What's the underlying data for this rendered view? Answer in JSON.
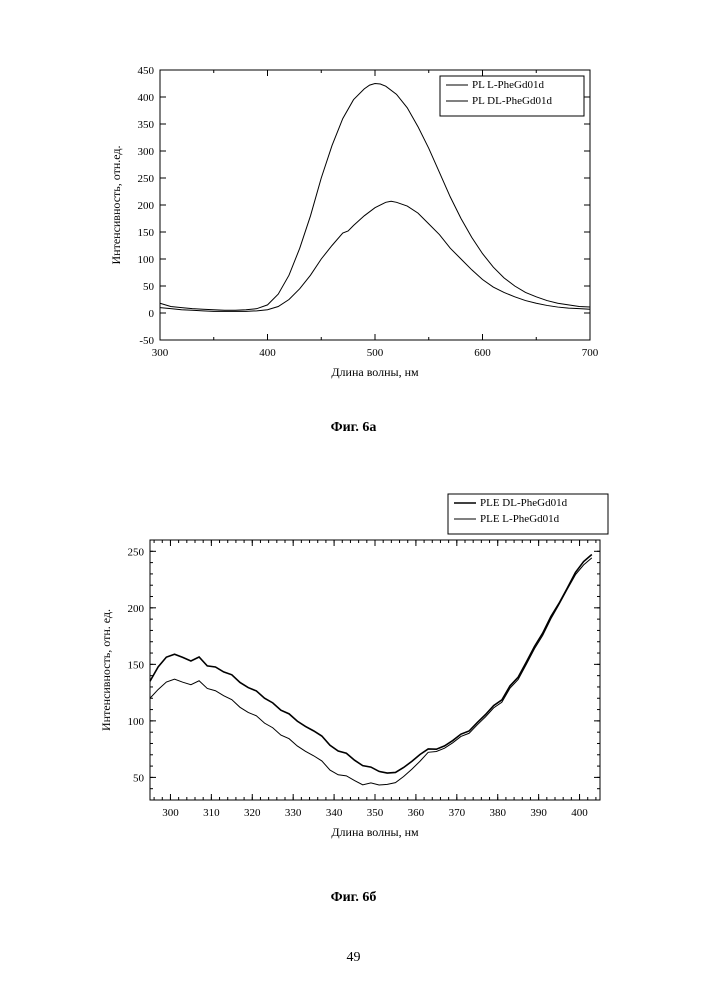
{
  "page_number": "49",
  "chart_a": {
    "type": "line",
    "caption": "Фиг. 6а",
    "xlabel": "Длина волны, нм",
    "ylabel": "Интенсивность, отн.ед.",
    "label_fontsize": 12,
    "tick_fontsize": 11,
    "background_color": "#ffffff",
    "axis_color": "#000000",
    "line_color": "#000000",
    "line_width": 1,
    "xlim": [
      300,
      700
    ],
    "ylim": [
      -50,
      450
    ],
    "xtick_step": 100,
    "ytick_step": 50,
    "minor_xtick_step": 50,
    "legend": {
      "position": "top-right",
      "items": [
        "PL L-PheGd01d",
        "PL DL-PheGd01d"
      ],
      "border_color": "#000000",
      "fontsize": 11
    },
    "series": [
      {
        "name": "PL L-PheGd01d",
        "color": "#000000",
        "data": [
          [
            300,
            18
          ],
          [
            310,
            12
          ],
          [
            320,
            10
          ],
          [
            330,
            8
          ],
          [
            340,
            7
          ],
          [
            350,
            6
          ],
          [
            360,
            5
          ],
          [
            370,
            5
          ],
          [
            380,
            6
          ],
          [
            390,
            8
          ],
          [
            400,
            15
          ],
          [
            410,
            35
          ],
          [
            420,
            70
          ],
          [
            430,
            120
          ],
          [
            440,
            180
          ],
          [
            450,
            250
          ],
          [
            460,
            310
          ],
          [
            470,
            360
          ],
          [
            480,
            395
          ],
          [
            490,
            415
          ],
          [
            495,
            422
          ],
          [
            500,
            425
          ],
          [
            505,
            424
          ],
          [
            510,
            420
          ],
          [
            520,
            405
          ],
          [
            530,
            380
          ],
          [
            540,
            345
          ],
          [
            550,
            305
          ],
          [
            560,
            260
          ],
          [
            570,
            215
          ],
          [
            580,
            175
          ],
          [
            590,
            140
          ],
          [
            600,
            110
          ],
          [
            610,
            85
          ],
          [
            620,
            65
          ],
          [
            630,
            50
          ],
          [
            640,
            38
          ],
          [
            650,
            30
          ],
          [
            660,
            23
          ],
          [
            670,
            18
          ],
          [
            680,
            15
          ],
          [
            690,
            12
          ],
          [
            700,
            11
          ]
        ]
      },
      {
        "name": "PL DL-PheGd01d",
        "color": "#000000",
        "data": [
          [
            300,
            10
          ],
          [
            310,
            8
          ],
          [
            320,
            6
          ],
          [
            330,
            5
          ],
          [
            340,
            4
          ],
          [
            350,
            3
          ],
          [
            360,
            3
          ],
          [
            370,
            3
          ],
          [
            380,
            3
          ],
          [
            390,
            4
          ],
          [
            400,
            6
          ],
          [
            410,
            12
          ],
          [
            420,
            25
          ],
          [
            430,
            45
          ],
          [
            440,
            70
          ],
          [
            450,
            100
          ],
          [
            460,
            125
          ],
          [
            470,
            148
          ],
          [
            475,
            152
          ],
          [
            480,
            162
          ],
          [
            490,
            180
          ],
          [
            500,
            195
          ],
          [
            510,
            205
          ],
          [
            515,
            207
          ],
          [
            520,
            205
          ],
          [
            530,
            198
          ],
          [
            540,
            185
          ],
          [
            550,
            165
          ],
          [
            560,
            145
          ],
          [
            570,
            120
          ],
          [
            580,
            100
          ],
          [
            590,
            80
          ],
          [
            600,
            62
          ],
          [
            610,
            48
          ],
          [
            620,
            38
          ],
          [
            630,
            30
          ],
          [
            640,
            23
          ],
          [
            650,
            18
          ],
          [
            660,
            14
          ],
          [
            670,
            11
          ],
          [
            680,
            9
          ],
          [
            690,
            8
          ],
          [
            700,
            7
          ]
        ]
      }
    ]
  },
  "chart_b": {
    "type": "line",
    "caption": "Фиг. 6б",
    "xlabel": "Длина волны, нм",
    "ylabel": "Интенсивность, отн. ед.",
    "label_fontsize": 12,
    "tick_fontsize": 11,
    "background_color": "#ffffff",
    "axis_color": "#000000",
    "line_color": "#000000",
    "xlim": [
      295,
      405
    ],
    "ylim": [
      30,
      260
    ],
    "xtick_step": 10,
    "ytick_step": 50,
    "minor_xtick_step": 2,
    "legend": {
      "position": "top-right",
      "items": [
        "PLE DL-PheGd01d",
        "PLE L-PheGd01d"
      ],
      "border_color": "#000000",
      "fontsize": 11
    },
    "series": [
      {
        "name": "PLE DL-PheGd01d",
        "color": "#000000",
        "width": 1.6,
        "data": [
          [
            295,
            135
          ],
          [
            297,
            148
          ],
          [
            299,
            155
          ],
          [
            301,
            158
          ],
          [
            303,
            156
          ],
          [
            305,
            153
          ],
          [
            307,
            155
          ],
          [
            309,
            150
          ],
          [
            311,
            148
          ],
          [
            313,
            143
          ],
          [
            315,
            140
          ],
          [
            317,
            135
          ],
          [
            319,
            130
          ],
          [
            321,
            125
          ],
          [
            323,
            120
          ],
          [
            325,
            115
          ],
          [
            327,
            110
          ],
          [
            329,
            105
          ],
          [
            331,
            100
          ],
          [
            333,
            95
          ],
          [
            335,
            90
          ],
          [
            337,
            85
          ],
          [
            339,
            80
          ],
          [
            341,
            75
          ],
          [
            343,
            70
          ],
          [
            345,
            65
          ],
          [
            347,
            62
          ],
          [
            349,
            58
          ],
          [
            351,
            55
          ],
          [
            353,
            54
          ],
          [
            355,
            55
          ],
          [
            357,
            58
          ],
          [
            359,
            63
          ],
          [
            361,
            72
          ],
          [
            363,
            75
          ],
          [
            365,
            74
          ],
          [
            367,
            78
          ],
          [
            369,
            82
          ],
          [
            371,
            87
          ],
          [
            373,
            92
          ],
          [
            375,
            98
          ],
          [
            377,
            105
          ],
          [
            379,
            112
          ],
          [
            381,
            120
          ],
          [
            383,
            130
          ],
          [
            385,
            140
          ],
          [
            387,
            152
          ],
          [
            389,
            165
          ],
          [
            391,
            178
          ],
          [
            393,
            192
          ],
          [
            395,
            205
          ],
          [
            397,
            218
          ],
          [
            399,
            230
          ],
          [
            401,
            240
          ],
          [
            403,
            247
          ]
        ]
      },
      {
        "name": "PLE L-PheGd01d",
        "color": "#000000",
        "width": 1,
        "data": [
          [
            295,
            120
          ],
          [
            297,
            128
          ],
          [
            299,
            133
          ],
          [
            301,
            136
          ],
          [
            303,
            134
          ],
          [
            305,
            132
          ],
          [
            307,
            134
          ],
          [
            309,
            130
          ],
          [
            311,
            127
          ],
          [
            313,
            122
          ],
          [
            315,
            118
          ],
          [
            317,
            113
          ],
          [
            319,
            108
          ],
          [
            321,
            103
          ],
          [
            323,
            98
          ],
          [
            325,
            93
          ],
          [
            327,
            88
          ],
          [
            329,
            83
          ],
          [
            331,
            78
          ],
          [
            333,
            73
          ],
          [
            335,
            68
          ],
          [
            337,
            63
          ],
          [
            339,
            58
          ],
          [
            341,
            54
          ],
          [
            343,
            50
          ],
          [
            345,
            47
          ],
          [
            347,
            45
          ],
          [
            349,
            44
          ],
          [
            351,
            43
          ],
          [
            353,
            44
          ],
          [
            355,
            46
          ],
          [
            357,
            50
          ],
          [
            359,
            56
          ],
          [
            361,
            66
          ],
          [
            363,
            72
          ],
          [
            365,
            72
          ],
          [
            367,
            76
          ],
          [
            369,
            80
          ],
          [
            371,
            85
          ],
          [
            373,
            90
          ],
          [
            375,
            96
          ],
          [
            377,
            103
          ],
          [
            379,
            110
          ],
          [
            381,
            118
          ],
          [
            383,
            128
          ],
          [
            385,
            138
          ],
          [
            387,
            150
          ],
          [
            389,
            163
          ],
          [
            391,
            176
          ],
          [
            393,
            190
          ],
          [
            395,
            204
          ],
          [
            397,
            217
          ],
          [
            399,
            228
          ],
          [
            401,
            237
          ],
          [
            403,
            244
          ]
        ]
      }
    ]
  }
}
